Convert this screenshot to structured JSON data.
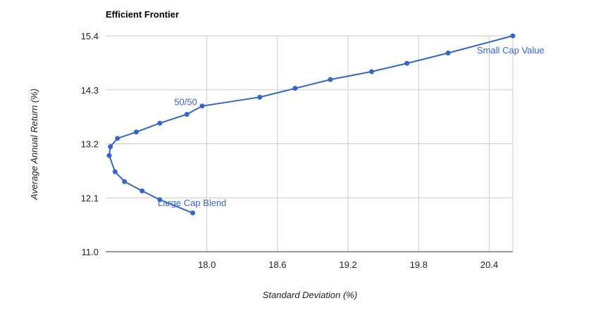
{
  "chart_data": {
    "type": "line",
    "title": "Efficient Frontier",
    "xlabel": "Standard Deviation (%)",
    "ylabel": "Average Annual Return (%)",
    "xlim": [
      17.14,
      20.6
    ],
    "ylim": [
      11.0,
      15.4
    ],
    "x_ticks": [
      "18.0",
      "18.6",
      "19.2",
      "19.8",
      "20.4"
    ],
    "x_tick_values": [
      18.0,
      18.6,
      19.2,
      19.8,
      20.4
    ],
    "y_ticks": [
      "11.0",
      "12.1",
      "13.2",
      "14.3",
      "15.4"
    ],
    "y_tick_values": [
      11.0,
      12.1,
      13.2,
      14.3,
      15.4
    ],
    "grid": true,
    "legend": "none",
    "colors": {
      "series": "#3366cc",
      "grid": "#cccccc",
      "baseline": "#333333"
    },
    "series": [
      {
        "x": [
          17.88,
          17.6,
          17.45,
          17.3,
          17.22,
          17.17,
          17.18,
          17.24,
          17.4,
          17.6,
          17.83,
          17.96,
          18.45,
          18.75,
          19.05,
          19.4,
          19.7,
          20.05,
          20.6
        ],
        "y": [
          11.79,
          12.06,
          12.24,
          12.43,
          12.63,
          12.96,
          13.14,
          13.31,
          13.44,
          13.62,
          13.8,
          13.97,
          14.15,
          14.33,
          14.51,
          14.67,
          14.84,
          15.05,
          15.4
        ]
      }
    ],
    "annotations": [
      {
        "text": "Small Cap Value",
        "x": 20.6,
        "y": 15.4
      },
      {
        "text": "50/50",
        "x": 17.83,
        "y": 13.8
      },
      {
        "text": "Large Cap Blend",
        "x": 17.6,
        "y": 12.06
      }
    ]
  }
}
